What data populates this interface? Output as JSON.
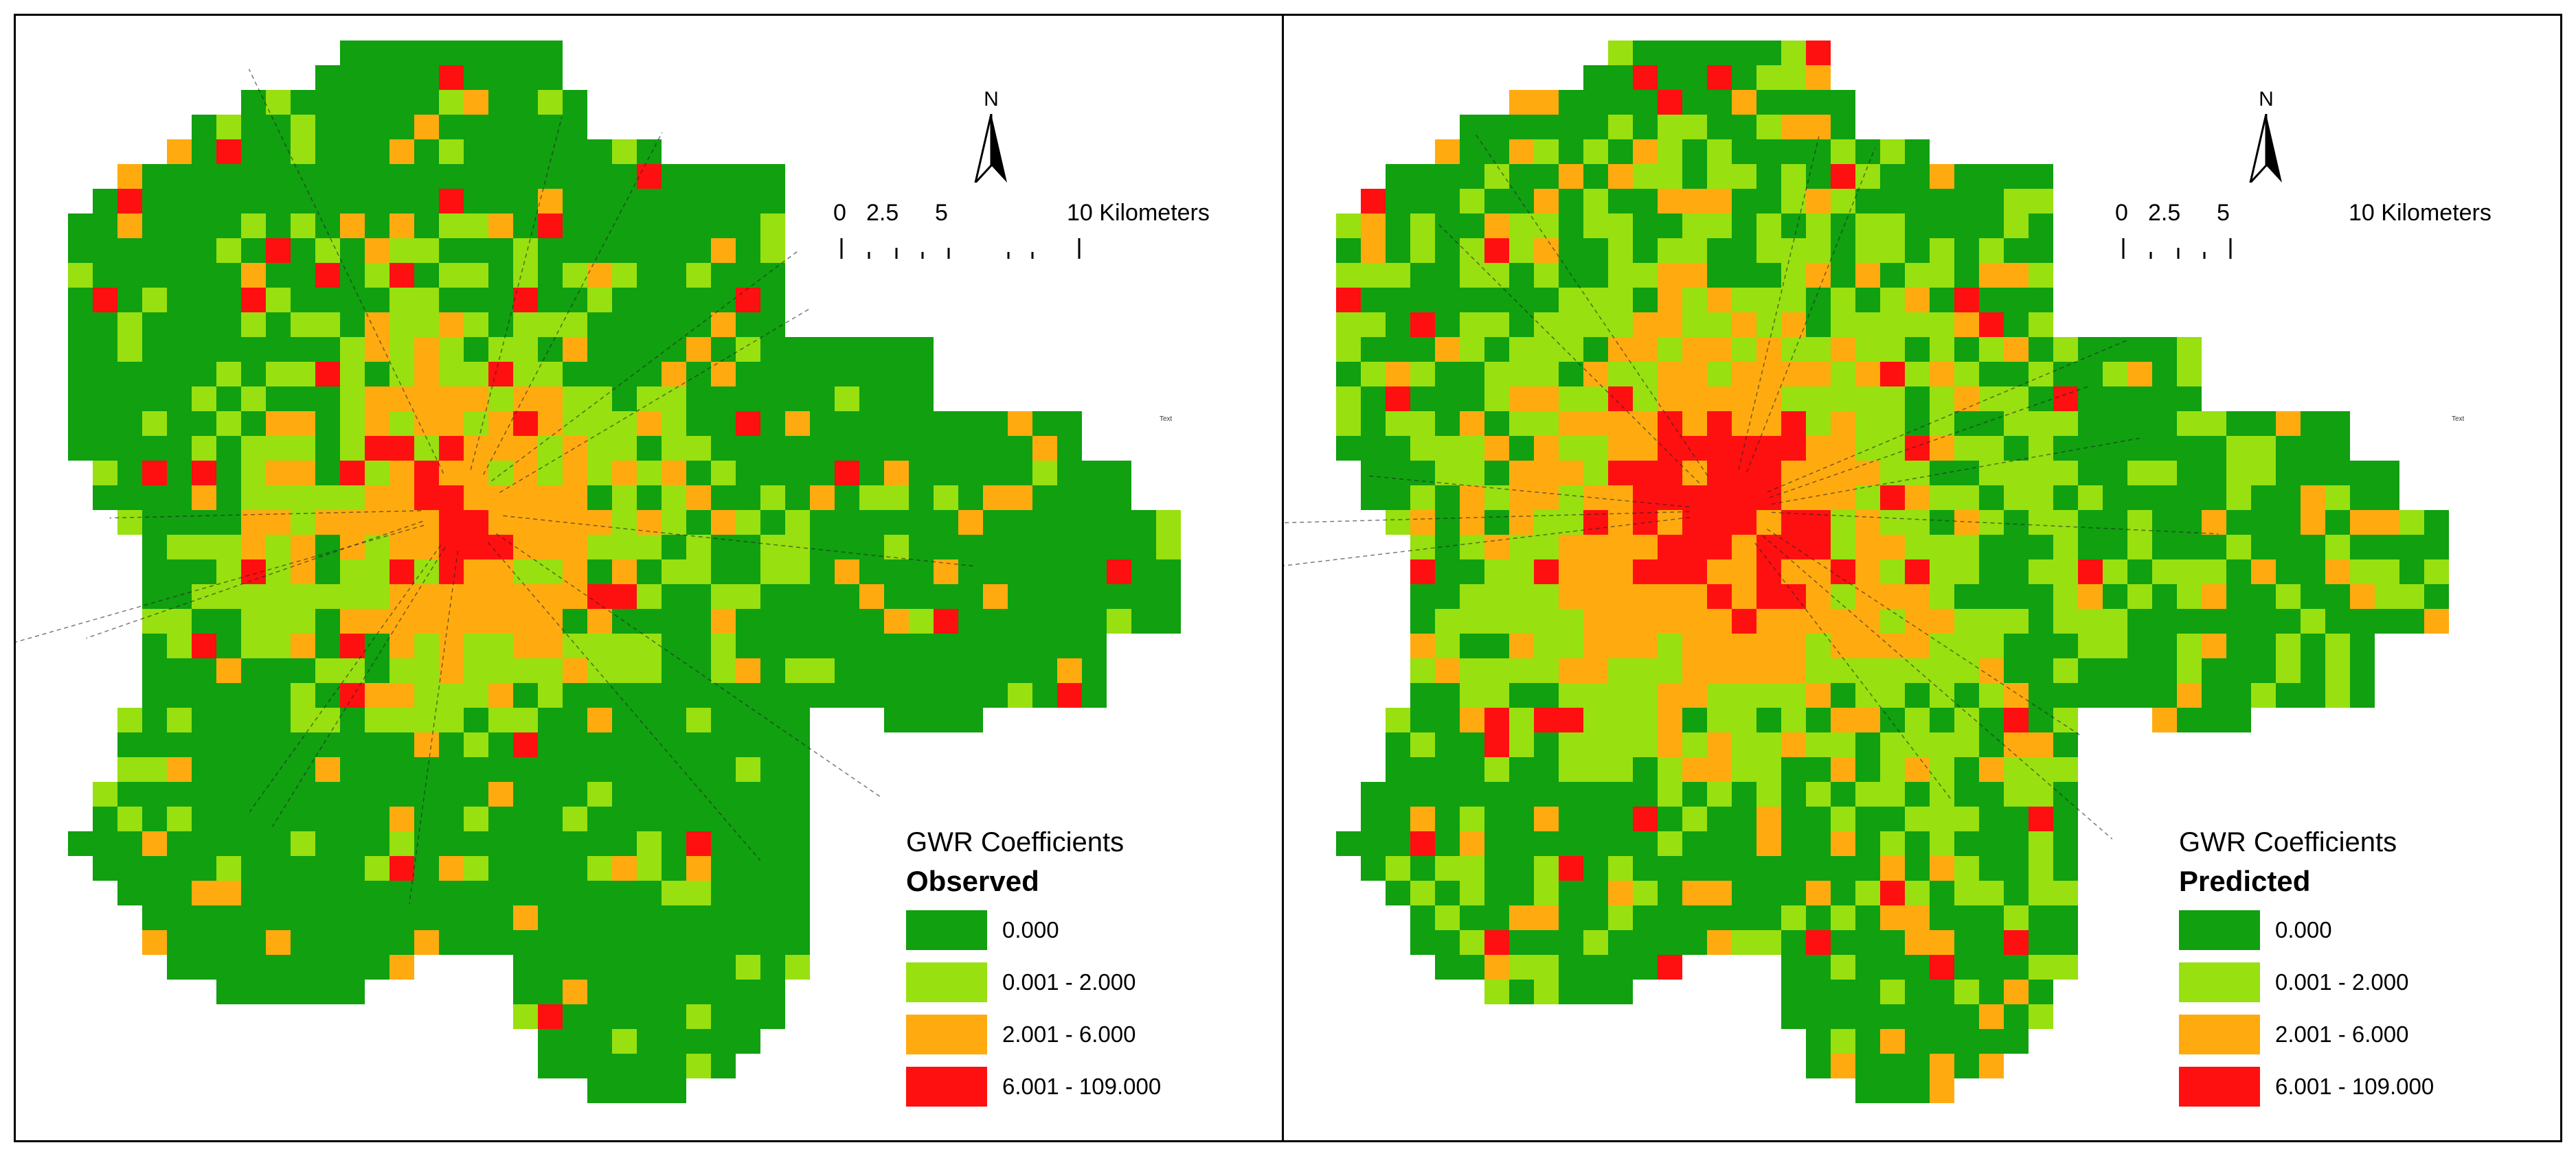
{
  "panels": [
    {
      "north_label": "N",
      "scale_labels": [
        "0",
        "2.5",
        "5",
        "10 Kilometers"
      ],
      "edge_label": "Text",
      "legend_title": "GWR Coefficients",
      "legend_subtitle": "Observed"
    },
    {
      "north_label": "N",
      "scale_labels": [
        "0",
        "2.5",
        "5",
        "10 Kilometers"
      ],
      "edge_label": "Text",
      "legend_title": "GWR Coefficients",
      "legend_subtitle": "Predicted"
    }
  ],
  "legend_classes": [
    {
      "label": "0.000",
      "color": "#10a010"
    },
    {
      "label": "0.001 - 2.000",
      "color": "#98e010"
    },
    {
      "label": "2.001 - 6.000",
      "color": "#ffab10"
    },
    {
      "label": "6.001 - 109.000",
      "color": "#ff1010"
    }
  ]
}
